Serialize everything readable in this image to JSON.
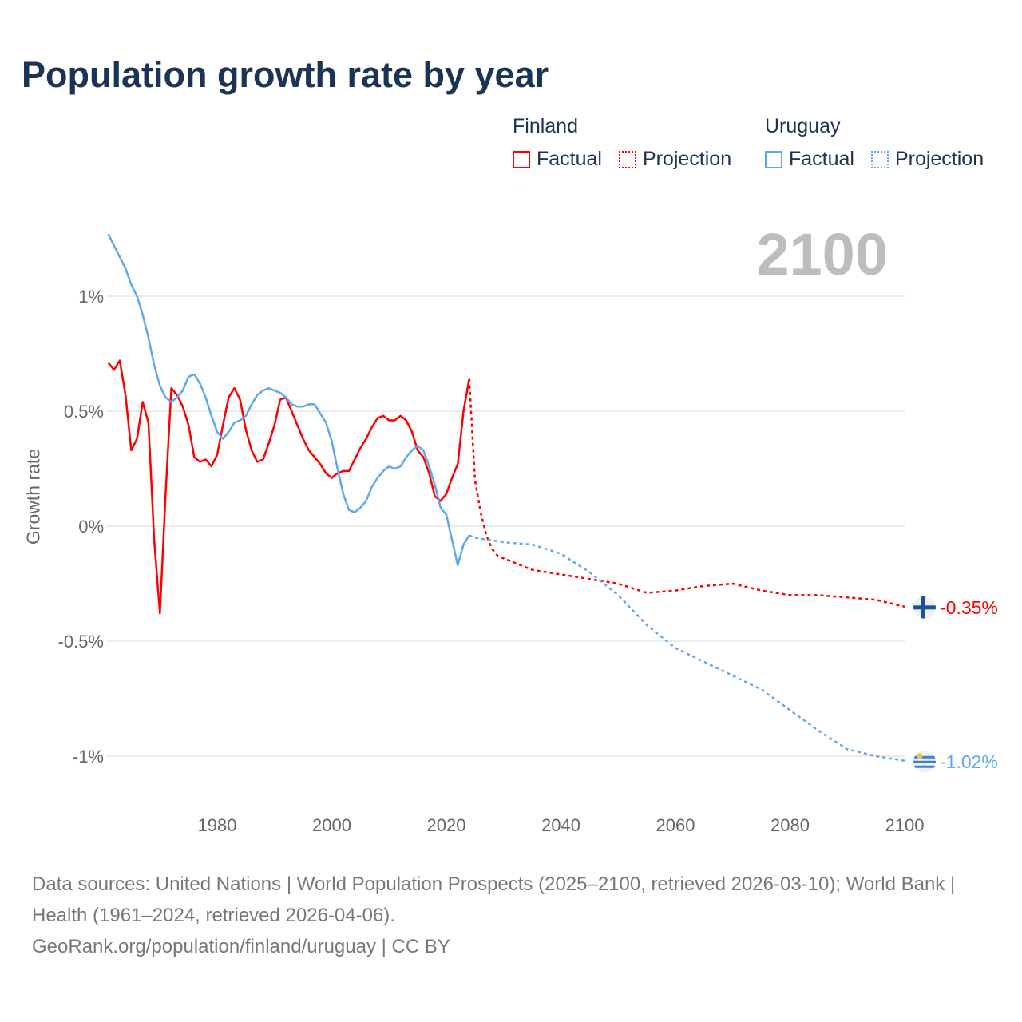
{
  "chart_data": {
    "type": "line",
    "title": "Population growth rate by year",
    "ylabel": "Growth rate",
    "xlabel": "",
    "xlim": [
      1961,
      2100
    ],
    "ylim": [
      -1.2,
      1.35
    ],
    "xticks": [
      1980,
      2000,
      2020,
      2040,
      2060,
      2080,
      2100
    ],
    "xtick_labels": [
      "1980",
      "2000",
      "2020",
      "2040",
      "2060",
      "2080",
      "2100"
    ],
    "yticks": [
      1,
      0.5,
      0,
      -0.5,
      -1
    ],
    "ytick_labels": [
      "1%",
      "0.5%",
      "0%",
      "-0.5%",
      "-1%"
    ],
    "grid": true,
    "current_year": "2100",
    "legend": {
      "placement": "top-right",
      "groups": [
        {
          "name": "Finland",
          "color": "#ff0000",
          "items": [
            "Factual",
            "Projection"
          ]
        },
        {
          "name": "Uruguay",
          "color": "#5fa8eb",
          "items": [
            "Factual",
            "Projection"
          ]
        }
      ]
    },
    "series": [
      {
        "name": "Finland Factual",
        "country": "Finland",
        "kind": "factual",
        "color": "#ff0000",
        "x": [
          1961,
          1962,
          1963,
          1964,
          1965,
          1966,
          1967,
          1968,
          1969,
          1970,
          1971,
          1972,
          1973,
          1974,
          1975,
          1976,
          1977,
          1978,
          1979,
          1980,
          1981,
          1982,
          1983,
          1984,
          1985,
          1986,
          1987,
          1988,
          1989,
          1990,
          1991,
          1992,
          1993,
          1994,
          1995,
          1996,
          1997,
          1998,
          1999,
          2000,
          2001,
          2002,
          2003,
          2004,
          2005,
          2006,
          2007,
          2008,
          2009,
          2010,
          2011,
          2012,
          2013,
          2014,
          2015,
          2016,
          2017,
          2018,
          2019,
          2020,
          2021,
          2022,
          2023,
          2024
        ],
        "y": [
          0.71,
          0.68,
          0.72,
          0.57,
          0.33,
          0.38,
          0.54,
          0.45,
          -0.06,
          -0.38,
          0.14,
          0.6,
          0.57,
          0.52,
          0.44,
          0.3,
          0.28,
          0.29,
          0.26,
          0.31,
          0.44,
          0.56,
          0.6,
          0.55,
          0.42,
          0.33,
          0.28,
          0.29,
          0.36,
          0.44,
          0.55,
          0.56,
          0.5,
          0.44,
          0.38,
          0.33,
          0.3,
          0.27,
          0.23,
          0.21,
          0.23,
          0.24,
          0.24,
          0.29,
          0.34,
          0.38,
          0.43,
          0.47,
          0.48,
          0.46,
          0.46,
          0.48,
          0.46,
          0.41,
          0.33,
          0.3,
          0.23,
          0.13,
          0.11,
          0.14,
          0.21,
          0.27,
          0.5,
          0.64
        ]
      },
      {
        "name": "Finland Projection",
        "country": "Finland",
        "kind": "projection",
        "color": "#ff0000",
        "x": [
          2024,
          2025,
          2026,
          2027,
          2028,
          2029,
          2030,
          2035,
          2040,
          2045,
          2050,
          2055,
          2060,
          2065,
          2070,
          2075,
          2080,
          2085,
          2090,
          2095,
          2100
        ],
        "y": [
          0.64,
          0.2,
          0.06,
          -0.04,
          -0.1,
          -0.13,
          -0.14,
          -0.19,
          -0.21,
          -0.23,
          -0.25,
          -0.29,
          -0.28,
          -0.26,
          -0.25,
          -0.28,
          -0.3,
          -0.3,
          -0.31,
          -0.32,
          -0.35
        ]
      },
      {
        "name": "Uruguay Factual",
        "country": "Uruguay",
        "kind": "factual",
        "color": "#5fa8eb",
        "x": [
          1961,
          1962,
          1963,
          1964,
          1965,
          1966,
          1967,
          1968,
          1969,
          1970,
          1971,
          1972,
          1973,
          1974,
          1975,
          1976,
          1977,
          1978,
          1979,
          1980,
          1981,
          1982,
          1983,
          1984,
          1985,
          1986,
          1987,
          1988,
          1989,
          1990,
          1991,
          1992,
          1993,
          1994,
          1995,
          1996,
          1997,
          1998,
          1999,
          2000,
          2001,
          2002,
          2003,
          2004,
          2005,
          2006,
          2007,
          2008,
          2009,
          2010,
          2011,
          2012,
          2013,
          2014,
          2015,
          2016,
          2017,
          2018,
          2019,
          2020,
          2021,
          2022,
          2023,
          2024
        ],
        "y": [
          1.27,
          1.22,
          1.17,
          1.12,
          1.05,
          1.0,
          0.92,
          0.82,
          0.7,
          0.61,
          0.56,
          0.54,
          0.56,
          0.59,
          0.65,
          0.66,
          0.62,
          0.56,
          0.48,
          0.41,
          0.38,
          0.41,
          0.45,
          0.46,
          0.48,
          0.53,
          0.57,
          0.59,
          0.6,
          0.59,
          0.58,
          0.56,
          0.53,
          0.52,
          0.52,
          0.53,
          0.53,
          0.49,
          0.45,
          0.37,
          0.25,
          0.14,
          0.07,
          0.06,
          0.08,
          0.11,
          0.17,
          0.21,
          0.24,
          0.26,
          0.25,
          0.26,
          0.3,
          0.33,
          0.35,
          0.33,
          0.26,
          0.18,
          0.08,
          0.05,
          -0.06,
          -0.17,
          -0.08,
          -0.04
        ]
      },
      {
        "name": "Uruguay Projection",
        "country": "Uruguay",
        "kind": "projection",
        "color": "#5fa8eb",
        "x": [
          2024,
          2025,
          2030,
          2035,
          2040,
          2045,
          2050,
          2055,
          2060,
          2065,
          2070,
          2075,
          2080,
          2085,
          2090,
          2095,
          2100
        ],
        "y": [
          -0.04,
          -0.05,
          -0.07,
          -0.08,
          -0.12,
          -0.2,
          -0.3,
          -0.43,
          -0.53,
          -0.59,
          -0.65,
          -0.71,
          -0.8,
          -0.89,
          -0.97,
          -1.0,
          -1.02
        ]
      }
    ],
    "end_labels": [
      {
        "country": "Finland",
        "text": "-0.35%",
        "value": -0.35,
        "color": "#ff0000"
      },
      {
        "country": "Uruguay",
        "text": "-1.02%",
        "value": -1.02,
        "color": "#5fa8eb"
      }
    ]
  },
  "footer": {
    "sources": "Data sources: United Nations | World Population Prospects (2025–2100, retrieved 2026-03-10); World Bank | Health (1961–2024, retrieved 2026-04-06).",
    "credit": "GeoRank.org/population/finland/uruguay | CC BY"
  }
}
